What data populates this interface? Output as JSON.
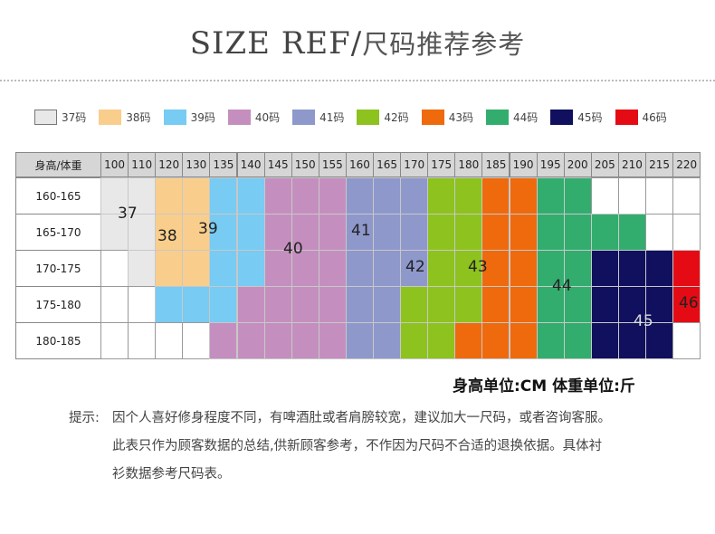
{
  "title": {
    "main": "SIZE REF",
    "sep": "/",
    "sub": "尺码推荐参考"
  },
  "legend": [
    {
      "label": "37码",
      "color": "#e8e8e8"
    },
    {
      "label": "38码",
      "color": "#f9ce8c"
    },
    {
      "label": "39码",
      "color": "#78cbf2"
    },
    {
      "label": "40码",
      "color": "#c48fbf"
    },
    {
      "label": "41码",
      "color": "#8e98cb"
    },
    {
      "label": "42码",
      "color": "#8dc21f"
    },
    {
      "label": "43码",
      "color": "#ee6a0d"
    },
    {
      "label": "44码",
      "color": "#33ad6e"
    },
    {
      "label": "45码",
      "color": "#10105e"
    },
    {
      "label": "46码",
      "color": "#e50b14"
    }
  ],
  "table": {
    "corner": "身高/体重",
    "weights": [
      "100",
      "110",
      "120",
      "130",
      "135",
      "140",
      "145",
      "150",
      "155",
      "160",
      "165",
      "170",
      "175",
      "180",
      "185",
      "190",
      "195",
      "200",
      "205",
      "210",
      "215",
      "220"
    ],
    "heights": [
      "160-165",
      "165-170",
      "170-175",
      "175-180",
      "180-185"
    ],
    "size_labels": [
      "37",
      "38",
      "39",
      "40",
      "41",
      "42",
      "43",
      "44",
      "45",
      "46"
    ]
  },
  "units": "身高单位:CM  体重单位:斤",
  "tip": {
    "prefix": "提示:",
    "line1": "因个人喜好修身程度不同，有啤酒肚或者肩膀较宽，建议加大一尺码，或者咨询客服。",
    "line2": "此表只作为顾客数据的总结,供新顾客参考，不作因为尺码不合适的退换依据。具体衬",
    "line3": "衫数据参考尺码表。"
  }
}
